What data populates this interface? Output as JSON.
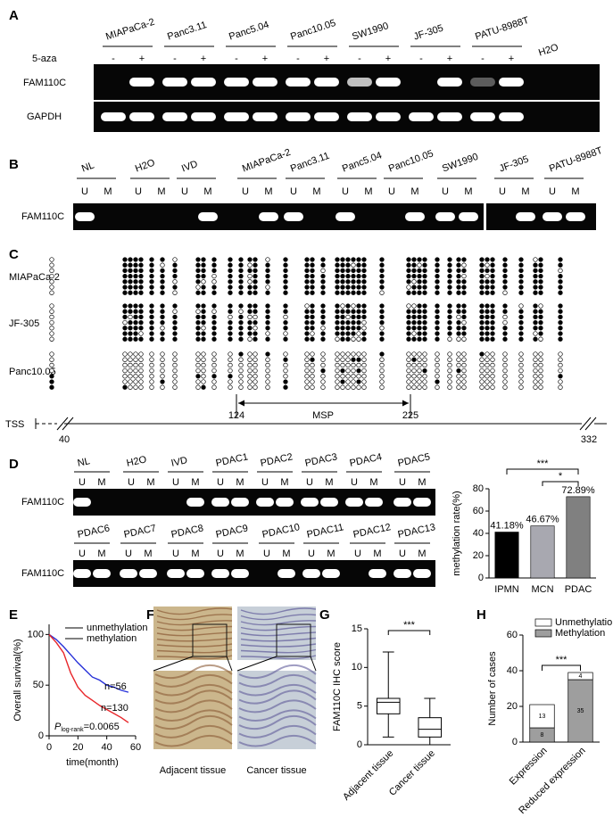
{
  "panels": {
    "panel_a": {
      "label": "A",
      "cell_lines": [
        "MIAPaCa-2",
        "Panc3.11",
        "Panc5.04",
        "Panc10.05",
        "SW1990",
        "JF-305",
        "PATU-8988T"
      ],
      "control": "H2O",
      "treatment": "5-aza",
      "treatment_marks": [
        "-",
        "+"
      ],
      "rows": [
        "FAM110C",
        "GAPDH"
      ]
    },
    "panel_b": {
      "label": "B",
      "samples": [
        "NL",
        "H2O",
        "IVD",
        "MIAPaCa-2",
        "Panc3.11",
        "Panc5.04",
        "Panc10.05",
        "SW1990",
        "JF-305",
        "PATU-8988T"
      ],
      "lanes": [
        "U",
        "M"
      ],
      "row": "FAM110C"
    },
    "panel_c": {
      "label": "C",
      "rows": [
        "MIAPaCa-2",
        "JF-305",
        "Panc10.05"
      ],
      "map": {
        "tss": "TSS",
        "start": 40,
        "end": 332,
        "msp": "MSP",
        "msp_start": 124,
        "msp_end": 225
      }
    },
    "panel_d": {
      "label": "D",
      "samples_top": [
        "NL",
        "H2O",
        "IVD",
        "PDAC1",
        "PDAC2",
        "PDAC3",
        "PDAC4",
        "PDAC5"
      ],
      "samples_bottom": [
        "PDAC6",
        "PDAC7",
        "PDAC8",
        "PDAC9",
        "PDAC10",
        "PDAC11",
        "PDAC12",
        "PDAC13"
      ],
      "lanes": [
        "U",
        "M"
      ],
      "row": "FAM110C"
    },
    "panel_f": {
      "label": "F",
      "captions": [
        "Adjacent tissue",
        "Cancer tissue"
      ]
    }
  },
  "chart_data": [
    {
      "type": "bar",
      "ylabel": "methylation rate(%)",
      "categories": [
        "IPMN",
        "MCN",
        "PDAC"
      ],
      "values": [
        41.18,
        46.67,
        72.89
      ],
      "value_labels": [
        "41.18%",
        "46.67%",
        "72.89%"
      ],
      "colors": [
        "#000000",
        "#a8a8b0",
        "#808080"
      ],
      "ylim": [
        0,
        80
      ],
      "yticks": [
        0,
        20,
        40,
        60,
        80
      ],
      "significance": [
        "***",
        "*"
      ]
    },
    {
      "panel": "E",
      "type": "line",
      "ylabel": "Overall survival(%)",
      "xlabel": "time(month)",
      "x": [
        0,
        5,
        10,
        15,
        20,
        25,
        30,
        35,
        40,
        45,
        50,
        55
      ],
      "series": [
        {
          "name": "unmethylation",
          "color": "#2630d8",
          "values": [
            100,
            95,
            88,
            80,
            72,
            65,
            58,
            55,
            50,
            48,
            45,
            43
          ]
        },
        {
          "name": "methylation",
          "color": "#e8262a",
          "values": [
            100,
            92,
            82,
            62,
            48,
            40,
            35,
            30,
            26,
            22,
            18,
            13
          ]
        }
      ],
      "xlim": [
        0,
        60
      ],
      "xticks": [
        0,
        20,
        40,
        60
      ],
      "ylim": [
        0,
        110
      ],
      "yticks": [
        0,
        50,
        100
      ],
      "annotations": [
        "n=56",
        "n=130"
      ],
      "p_value": {
        "symbol": "P",
        "subscript": "log-rank",
        "text": "=0.0065"
      }
    },
    {
      "panel": "G",
      "type": "box",
      "ylabel": "FAM110C IHC score",
      "categories": [
        "Adjacent tissue",
        "Cancer tissue"
      ],
      "boxes": [
        {
          "min": 1,
          "q1": 4,
          "median": 5.5,
          "q3": 6,
          "max": 12
        },
        {
          "min": 0,
          "q1": 1,
          "median": 2,
          "q3": 3.5,
          "max": 6
        }
      ],
      "ylim": [
        0,
        15
      ],
      "yticks": [
        0,
        5,
        10,
        15
      ],
      "significance": "***"
    },
    {
      "panel": "H",
      "type": "stacked_bar",
      "ylabel": "Number of cases",
      "categories": [
        "Expression",
        "Reduced expression"
      ],
      "series": [
        {
          "name": "Methylation",
          "color": "#9e9e9e",
          "values": [
            8,
            35
          ]
        },
        {
          "name": "Unmethylation",
          "color": "#ffffff",
          "values": [
            13,
            4
          ]
        }
      ],
      "ylim": [
        0,
        60
      ],
      "yticks": [
        0,
        20,
        40,
        60
      ],
      "significance": "***"
    }
  ]
}
